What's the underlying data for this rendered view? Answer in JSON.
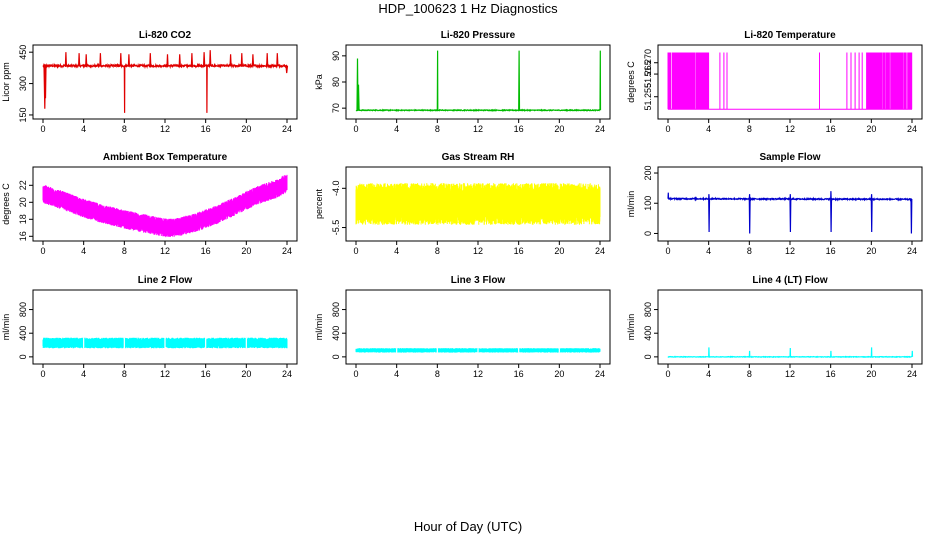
{
  "figure": {
    "title": "HDP_100623  1 Hz Diagnostics",
    "xlabel": "Hour of Day (UTC)"
  },
  "chart_data": [
    {
      "type": "line",
      "title": "Li-820 CO2",
      "ylabel": "Licor ppm",
      "color": "#e00000",
      "xlim": [
        0,
        24
      ],
      "ylim": [
        145,
        470
      ],
      "xticks": [
        0,
        4,
        8,
        12,
        16,
        20,
        24
      ],
      "yticks": [
        150,
        300,
        450
      ],
      "ytick_labels": [
        "150",
        "300",
        "450"
      ],
      "baseline": [
        [
          0,
          385
        ],
        [
          24,
          385
        ]
      ],
      "noise": 10,
      "spikes": [
        [
          0.1,
          180,
          0.15
        ],
        [
          0.2,
          230,
          0.1
        ],
        [
          2.2,
          450,
          0.1
        ],
        [
          3.5,
          445,
          0.1
        ],
        [
          4.2,
          440,
          0.1
        ],
        [
          5.6,
          445,
          0.1
        ],
        [
          7.6,
          445,
          0.1
        ],
        [
          8.0,
          160,
          0.05
        ],
        [
          8.4,
          440,
          0.1
        ],
        [
          10.5,
          445,
          0.1
        ],
        [
          12.2,
          440,
          0.1
        ],
        [
          13.4,
          440,
          0.1
        ],
        [
          14.6,
          445,
          0.1
        ],
        [
          15.8,
          450,
          0.1
        ],
        [
          16.1,
          160,
          0.05
        ],
        [
          16.4,
          460,
          0.1
        ],
        [
          18.4,
          440,
          0.1
        ],
        [
          19.5,
          445,
          0.1
        ],
        [
          20.6,
          440,
          0.1
        ],
        [
          22.0,
          445,
          0.1
        ],
        [
          23.0,
          445,
          0.1
        ],
        [
          23.9,
          350,
          0.15
        ]
      ]
    },
    {
      "type": "line",
      "title": "Li-820 Pressure",
      "ylabel": "kPa",
      "color": "#00bb00",
      "xlim": [
        0,
        24
      ],
      "ylim": [
        67,
        93
      ],
      "xticks": [
        0,
        4,
        8,
        12,
        16,
        20,
        24
      ],
      "yticks": [
        70,
        80,
        90
      ],
      "ytick_labels": [
        "70",
        "80",
        "90"
      ],
      "baseline": [
        [
          0,
          69.2
        ],
        [
          24,
          69.2
        ]
      ],
      "noise": 0.3,
      "spikes": [
        [
          0.1,
          89,
          0.1
        ],
        [
          0.2,
          79,
          0.1
        ],
        [
          8.0,
          92,
          0.05
        ],
        [
          16.0,
          92,
          0.08
        ],
        [
          24.0,
          92,
          0.05
        ]
      ]
    },
    {
      "type": "line",
      "title": "Li-820 Temperature",
      "ylabel": "degrees C",
      "color": "#ff00ff",
      "xlim": [
        0,
        24
      ],
      "ylim": [
        51.2465,
        51.2765
      ],
      "xticks": [
        0,
        4,
        8,
        12,
        16,
        20,
        24
      ],
      "yticks": [
        51.255,
        51.265,
        51.27
      ],
      "ytick_labels": [
        "51.255",
        "51.265",
        "51.270"
      ],
      "levels": [
        51.2495,
        51.2745
      ],
      "dense_ranges": [
        [
          0,
          4.0
        ],
        [
          19.5,
          24
        ]
      ],
      "isolated_x": [
        5.1,
        5.5,
        5.8,
        14.9,
        17.6,
        18.0,
        18.4,
        18.8,
        19.1
      ]
    },
    {
      "type": "band",
      "title": "Ambient Box Temperature",
      "ylabel": "degrees C",
      "color": "#ff00ff",
      "xlim": [
        0,
        24
      ],
      "ylim": [
        15.8,
        23.8
      ],
      "xticks": [
        0,
        4,
        8,
        12,
        16,
        20,
        24
      ],
      "yticks": [
        16,
        18,
        20,
        22
      ],
      "ytick_labels": [
        "16",
        "18",
        "20",
        "22"
      ],
      "center": [
        [
          0,
          21.0
        ],
        [
          2,
          20.2
        ],
        [
          4,
          19.3
        ],
        [
          6,
          18.6
        ],
        [
          8,
          18.0
        ],
        [
          10,
          17.5
        ],
        [
          12,
          17.0
        ],
        [
          13,
          17.0
        ],
        [
          15,
          17.6
        ],
        [
          17,
          18.5
        ],
        [
          19,
          19.6
        ],
        [
          21,
          20.8
        ],
        [
          23,
          21.6
        ],
        [
          24,
          22.3
        ]
      ],
      "half_width": 1.1
    },
    {
      "type": "band",
      "title": "Gas Stream RH",
      "ylabel": "percent",
      "color": "#ffff00",
      "xlim": [
        0,
        24
      ],
      "ylim": [
        -5.9,
        -3.3
      ],
      "xticks": [
        0,
        4,
        8,
        12,
        16,
        20,
        24
      ],
      "yticks": [
        -5.5,
        -4.0
      ],
      "ytick_labels": [
        "-5.5",
        "-4.0"
      ],
      "center": [
        [
          0,
          -4.6
        ],
        [
          24,
          -4.6
        ]
      ],
      "half_width": 0.8
    },
    {
      "type": "line",
      "title": "Sample Flow",
      "ylabel": "ml/min",
      "color": "#0000cc",
      "xlim": [
        0,
        24
      ],
      "ylim": [
        -15,
        210
      ],
      "xticks": [
        0,
        4,
        8,
        12,
        16,
        20,
        24
      ],
      "yticks": [
        0,
        100,
        200
      ],
      "ytick_labels": [
        "0",
        "100",
        "200"
      ],
      "baseline": [
        [
          0,
          115
        ],
        [
          24,
          113
        ]
      ],
      "noise": 4,
      "spikes": [
        [
          0.0,
          135,
          0.05
        ],
        [
          4.0,
          5,
          0.08
        ],
        [
          4.0,
          130,
          0.05
        ],
        [
          8.0,
          0,
          0.08
        ],
        [
          8.0,
          130,
          0.05
        ],
        [
          12.0,
          5,
          0.08
        ],
        [
          12.0,
          130,
          0.05
        ],
        [
          16.0,
          5,
          0.08
        ],
        [
          16.0,
          140,
          0.05
        ],
        [
          20.0,
          5,
          0.08
        ],
        [
          20.0,
          130,
          0.05
        ],
        [
          23.9,
          0,
          0.08
        ]
      ]
    },
    {
      "type": "band",
      "title": "Line 2 Flow",
      "ylabel": "ml/min",
      "color": "#00ffff",
      "xlim": [
        0,
        24
      ],
      "ylim": [
        -70,
        1080
      ],
      "xticks": [
        0,
        4,
        8,
        12,
        16,
        20,
        24
      ],
      "yticks": [
        0,
        400,
        800
      ],
      "ytick_labels": [
        "0",
        "400",
        "800"
      ],
      "center": [
        [
          0,
          235
        ],
        [
          24,
          235
        ]
      ],
      "half_width": 90,
      "gaps_x": [
        4.0,
        8.0,
        12.0,
        16.0,
        20.0
      ]
    },
    {
      "type": "band",
      "title": "Line 3 Flow",
      "ylabel": "ml/min",
      "color": "#00ffff",
      "xlim": [
        0,
        24
      ],
      "ylim": [
        -70,
        1080
      ],
      "xticks": [
        0,
        4,
        8,
        12,
        16,
        20,
        24
      ],
      "yticks": [
        0,
        400,
        800
      ],
      "ytick_labels": [
        "0",
        "400",
        "800"
      ],
      "center": [
        [
          0,
          110
        ],
        [
          24,
          110
        ]
      ],
      "half_width": 38,
      "gaps_x": [
        4.0,
        8.0,
        12.0,
        16.0,
        20.0
      ]
    },
    {
      "type": "line",
      "title": "Line 4 (LT) Flow",
      "ylabel": "ml/min",
      "color": "#00ffff",
      "xlim": [
        0,
        24
      ],
      "ylim": [
        -70,
        1080
      ],
      "xticks": [
        0,
        4,
        8,
        12,
        16,
        20,
        24
      ],
      "yticks": [
        0,
        400,
        800
      ],
      "ytick_labels": [
        "0",
        "400",
        "800"
      ],
      "baseline": [
        [
          0,
          0
        ],
        [
          24,
          0
        ]
      ],
      "noise": 8,
      "spikes": [
        [
          4.0,
          160,
          0.05
        ],
        [
          8.0,
          100,
          0.05
        ],
        [
          12.0,
          150,
          0.05
        ],
        [
          16.0,
          100,
          0.05
        ],
        [
          20.0,
          160,
          0.05
        ],
        [
          24.0,
          100,
          0.05
        ]
      ]
    }
  ]
}
